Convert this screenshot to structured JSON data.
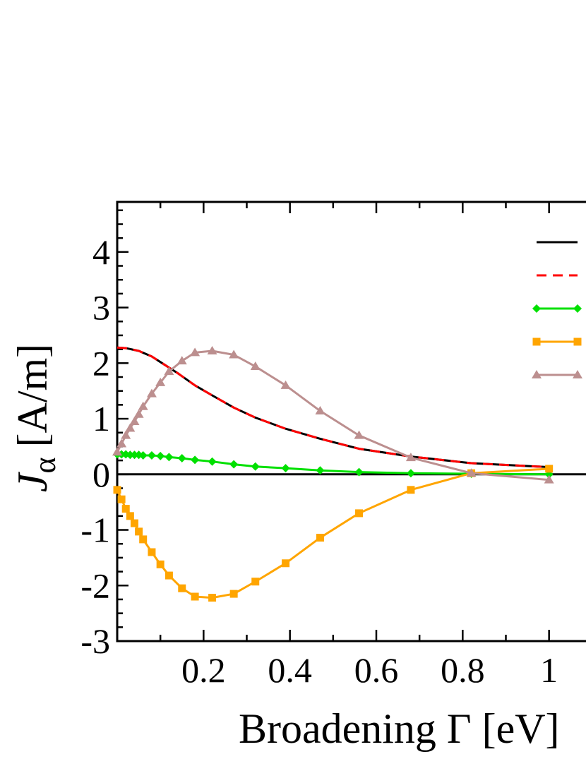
{
  "chart_data": {
    "type": "line",
    "xlabel": "Broadening Γ [eV]",
    "ylabel": "J",
    "ylabel_sub": "α",
    "ylabel_unit": "[A/m]",
    "xlim": [
      0,
      1.2
    ],
    "ylim": [
      -3,
      4.9
    ],
    "xticks": [
      {
        "v": 0.2,
        "label": "0.2"
      },
      {
        "v": 0.4,
        "label": "0.4"
      },
      {
        "v": 0.6,
        "label": "0.6"
      },
      {
        "v": 0.8,
        "label": "0.8"
      },
      {
        "v": 1.0,
        "label": "1"
      }
    ],
    "yticks": [
      {
        "v": 4,
        "label": "4"
      },
      {
        "v": 3,
        "label": "3"
      },
      {
        "v": 2,
        "label": "2"
      },
      {
        "v": 1,
        "label": "1"
      },
      {
        "v": 0,
        "label": "0"
      },
      {
        "v": -1,
        "label": "-1"
      },
      {
        "v": -2,
        "label": "-2"
      },
      {
        "v": -3,
        "label": "-3"
      }
    ],
    "zero_line": true,
    "grid": false,
    "legend_position": "top-right",
    "series": [
      {
        "id": "total-solid",
        "color": "#000000",
        "dash": "",
        "marker": "none",
        "x": [
          0.0,
          0.02,
          0.05,
          0.08,
          0.11,
          0.14,
          0.18,
          0.22,
          0.27,
          0.32,
          0.39,
          0.47,
          0.56,
          0.68,
          0.82,
          1.0
        ],
        "y": [
          2.28,
          2.27,
          2.22,
          2.12,
          1.97,
          1.82,
          1.6,
          1.42,
          1.2,
          1.02,
          0.82,
          0.64,
          0.46,
          0.32,
          0.2,
          0.13
        ]
      },
      {
        "id": "total-dashed",
        "color": "#ff0000",
        "dash": "14,9",
        "marker": "none",
        "x": [
          0.0,
          0.02,
          0.05,
          0.08,
          0.11,
          0.14,
          0.18,
          0.22,
          0.27,
          0.32,
          0.39,
          0.47,
          0.56,
          0.68,
          0.82,
          1.0
        ],
        "y": [
          2.28,
          2.27,
          2.22,
          2.12,
          1.97,
          1.82,
          1.6,
          1.42,
          1.2,
          1.02,
          0.82,
          0.64,
          0.46,
          0.32,
          0.2,
          0.13
        ]
      },
      {
        "id": "green-diamonds",
        "color": "#00e000",
        "dash": "",
        "marker": "diamond",
        "x": [
          0.0,
          0.01,
          0.02,
          0.03,
          0.04,
          0.05,
          0.06,
          0.08,
          0.1,
          0.12,
          0.15,
          0.18,
          0.22,
          0.27,
          0.32,
          0.39,
          0.47,
          0.56,
          0.68,
          0.82,
          1.0
        ],
        "y": [
          0.36,
          0.36,
          0.36,
          0.35,
          0.35,
          0.35,
          0.34,
          0.34,
          0.33,
          0.31,
          0.29,
          0.26,
          0.23,
          0.18,
          0.14,
          0.11,
          0.07,
          0.04,
          0.02,
          0.01,
          0.0
        ]
      },
      {
        "id": "orange-squares",
        "color": "#ffa500",
        "dash": "",
        "marker": "square",
        "x": [
          0.0,
          0.01,
          0.02,
          0.03,
          0.04,
          0.05,
          0.06,
          0.08,
          0.1,
          0.12,
          0.15,
          0.18,
          0.22,
          0.27,
          0.32,
          0.39,
          0.47,
          0.56,
          0.68,
          0.82,
          1.0
        ],
        "y": [
          -0.28,
          -0.45,
          -0.62,
          -0.75,
          -0.88,
          -1.03,
          -1.17,
          -1.4,
          -1.62,
          -1.82,
          -2.05,
          -2.2,
          -2.22,
          -2.15,
          -1.93,
          -1.6,
          -1.14,
          -0.7,
          -0.28,
          0.02,
          0.1
        ]
      },
      {
        "id": "brown-triangles",
        "color": "#bc8f8f",
        "dash": "",
        "marker": "triangle",
        "x": [
          0.0,
          0.01,
          0.02,
          0.03,
          0.04,
          0.05,
          0.06,
          0.08,
          0.1,
          0.12,
          0.15,
          0.18,
          0.22,
          0.27,
          0.32,
          0.39,
          0.47,
          0.56,
          0.68,
          0.82,
          1.0
        ],
        "y": [
          0.4,
          0.55,
          0.7,
          0.83,
          0.95,
          1.08,
          1.22,
          1.45,
          1.65,
          1.85,
          2.04,
          2.19,
          2.22,
          2.15,
          1.94,
          1.6,
          1.14,
          0.7,
          0.3,
          0.02,
          -0.1
        ]
      }
    ]
  }
}
